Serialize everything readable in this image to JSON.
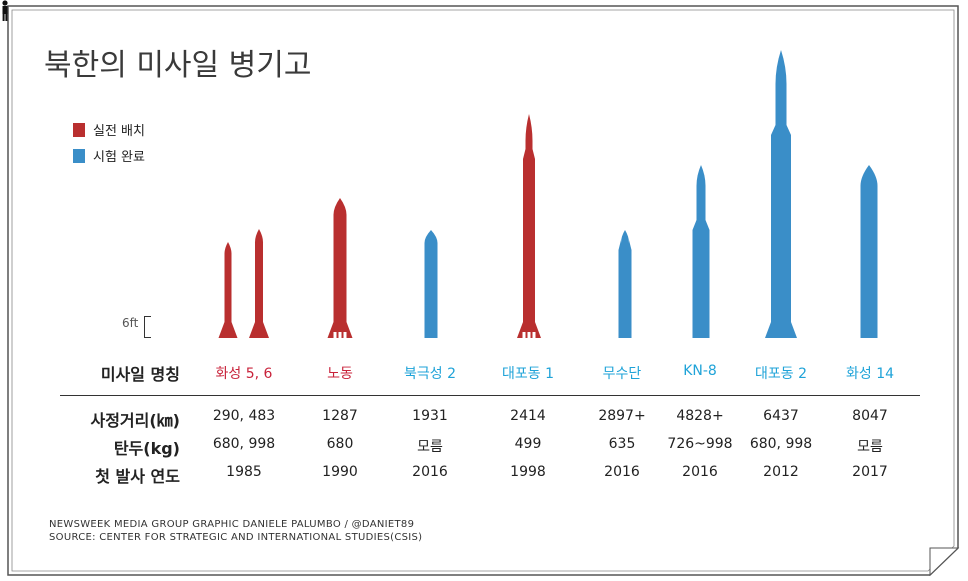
{
  "title": "북한의 미사일 병기고",
  "legend": [
    {
      "label": "실전 배치",
      "color": "#b92f2f"
    },
    {
      "label": "시험 완료",
      "color": "#3a8ec8"
    }
  ],
  "scale_label": "6ft",
  "row_labels": {
    "name": "미사일 명칭",
    "range": "사정거리(㎞)",
    "warhead": "탄두(kg)",
    "first_launch": "첫 발사 연도"
  },
  "chart_data": {
    "type": "table",
    "columns": [
      "missile",
      "status",
      "range_km",
      "warhead_kg",
      "first_launch_year"
    ],
    "missiles": [
      {
        "name": "화성 5, 6",
        "status": "실전 배치",
        "color": "#c8223a",
        "range": "290, 483",
        "warhead": "680, 998",
        "year": "1985"
      },
      {
        "name": "노동",
        "status": "실전 배치",
        "color": "#c8223a",
        "range": "1287",
        "warhead": "680",
        "year": "1990"
      },
      {
        "name": "북극성 2",
        "status": "시험 완료",
        "color": "#1fa3d8",
        "range": "1931",
        "warhead": "모름",
        "year": "2016"
      },
      {
        "name": "대포동 1",
        "status": "실전 배치",
        "color": "#1fa3d8",
        "range": "2414",
        "warhead": "499",
        "year": "1998"
      },
      {
        "name": "무수단",
        "status": "시험 완료",
        "color": "#1fa3d8",
        "range": "2897+",
        "warhead": "635",
        "year": "2016"
      },
      {
        "name": "KN-8",
        "status": "시험 완료",
        "color": "#1fa3d8",
        "range": "4828+",
        "warhead": "726~998",
        "year": "2016"
      },
      {
        "name": "대포동 2",
        "status": "시험 완료",
        "color": "#1fa3d8",
        "range": "6437",
        "warhead": "680, 998",
        "year": "2012"
      },
      {
        "name": "화성 14",
        "status": "시험 완료",
        "color": "#1fa3d8",
        "range": "8047",
        "warhead": "모름",
        "year": "2017"
      }
    ]
  },
  "footer": {
    "credit": "NEWSWEEK MEDIA GROUP GRAPHIC DANIELE PALUMBO / @DANIET89",
    "source": "SOURCE: CENTER FOR STRATEGIC AND INTERNATIONAL STUDIES(CSIS)"
  }
}
